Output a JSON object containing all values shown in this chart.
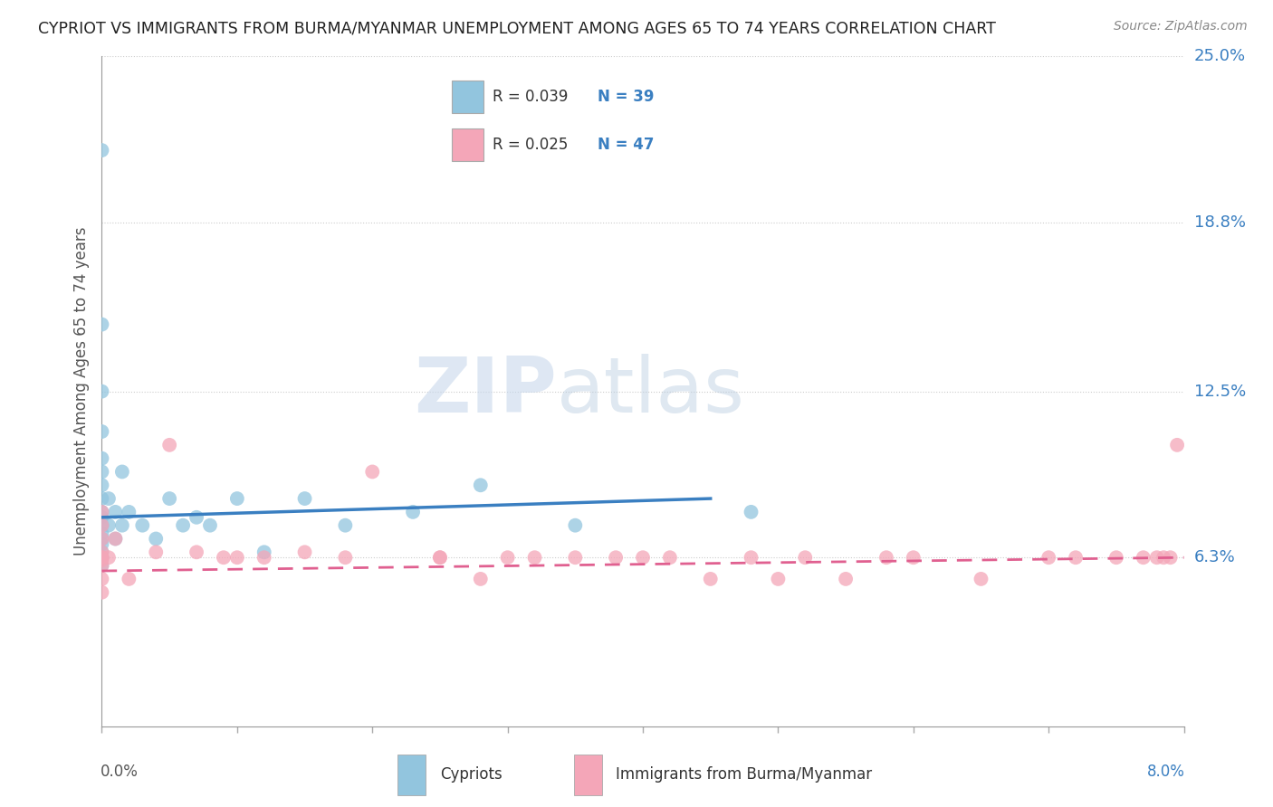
{
  "title": "CYPRIOT VS IMMIGRANTS FROM BURMA/MYANMAR UNEMPLOYMENT AMONG AGES 65 TO 74 YEARS CORRELATION CHART",
  "source": "Source: ZipAtlas.com",
  "ylabel": "Unemployment Among Ages 65 to 74 years",
  "xlim": [
    0.0,
    8.0
  ],
  "ylim": [
    0.0,
    25.0
  ],
  "ytick_positions": [
    6.3,
    12.5,
    18.8,
    25.0
  ],
  "ytick_labels": [
    "6.3%",
    "12.5%",
    "18.8%",
    "25.0%"
  ],
  "xtick_positions": [
    0.0,
    1.0,
    2.0,
    3.0,
    4.0,
    5.0,
    6.0,
    7.0,
    8.0
  ],
  "legend_R1": "R = 0.039",
  "legend_N1": "N = 39",
  "legend_R2": "R = 0.025",
  "legend_N2": "N = 47",
  "color_blue": "#92c5de",
  "color_pink": "#f4a6b8",
  "color_blue_line": "#3a7fc1",
  "color_pink_line": "#e06090",
  "watermark_zip": "ZIP",
  "watermark_atlas": "atlas",
  "cypriot_x": [
    0.0,
    0.0,
    0.0,
    0.0,
    0.0,
    0.0,
    0.0,
    0.0,
    0.0,
    0.0,
    0.0,
    0.0,
    0.0,
    0.0,
    0.0,
    0.0,
    0.0,
    0.0,
    0.05,
    0.05,
    0.1,
    0.1,
    0.15,
    0.15,
    0.2,
    0.3,
    0.4,
    0.5,
    0.6,
    0.7,
    0.8,
    1.0,
    1.2,
    1.5,
    1.8,
    2.3,
    2.8,
    3.5,
    4.8
  ],
  "cypriot_y": [
    21.5,
    15.0,
    12.5,
    11.0,
    10.0,
    9.5,
    9.0,
    8.5,
    8.0,
    7.8,
    7.5,
    7.2,
    7.0,
    6.8,
    6.5,
    6.3,
    6.3,
    6.0,
    7.5,
    8.5,
    7.0,
    8.0,
    7.5,
    9.5,
    8.0,
    7.5,
    7.0,
    8.5,
    7.5,
    7.8,
    7.5,
    8.5,
    6.5,
    8.5,
    7.5,
    8.0,
    9.0,
    7.5,
    8.0
  ],
  "burma_x": [
    0.0,
    0.0,
    0.0,
    0.0,
    0.0,
    0.0,
    0.0,
    0.0,
    0.0,
    0.0,
    0.05,
    0.1,
    0.2,
    0.4,
    0.5,
    0.7,
    0.9,
    1.0,
    1.2,
    1.5,
    1.8,
    2.0,
    2.5,
    2.5,
    2.8,
    3.0,
    3.2,
    3.5,
    3.8,
    4.0,
    4.2,
    4.5,
    4.8,
    5.0,
    5.2,
    5.5,
    5.8,
    6.0,
    6.5,
    7.0,
    7.2,
    7.5,
    7.7,
    7.8,
    7.85,
    7.9,
    7.95
  ],
  "burma_y": [
    5.0,
    5.5,
    6.0,
    6.2,
    6.3,
    6.3,
    6.5,
    7.0,
    7.5,
    8.0,
    6.3,
    7.0,
    5.5,
    6.5,
    10.5,
    6.5,
    6.3,
    6.3,
    6.3,
    6.5,
    6.3,
    9.5,
    6.3,
    6.3,
    5.5,
    6.3,
    6.3,
    6.3,
    6.3,
    6.3,
    6.3,
    5.5,
    6.3,
    5.5,
    6.3,
    5.5,
    6.3,
    6.3,
    5.5,
    6.3,
    6.3,
    6.3,
    6.3,
    6.3,
    6.3,
    6.3,
    10.5
  ],
  "blue_line_x": [
    0.0,
    4.5
  ],
  "blue_line_y": [
    7.8,
    8.5
  ],
  "pink_line_x": [
    0.0,
    8.0
  ],
  "pink_line_y": [
    5.8,
    6.3
  ]
}
